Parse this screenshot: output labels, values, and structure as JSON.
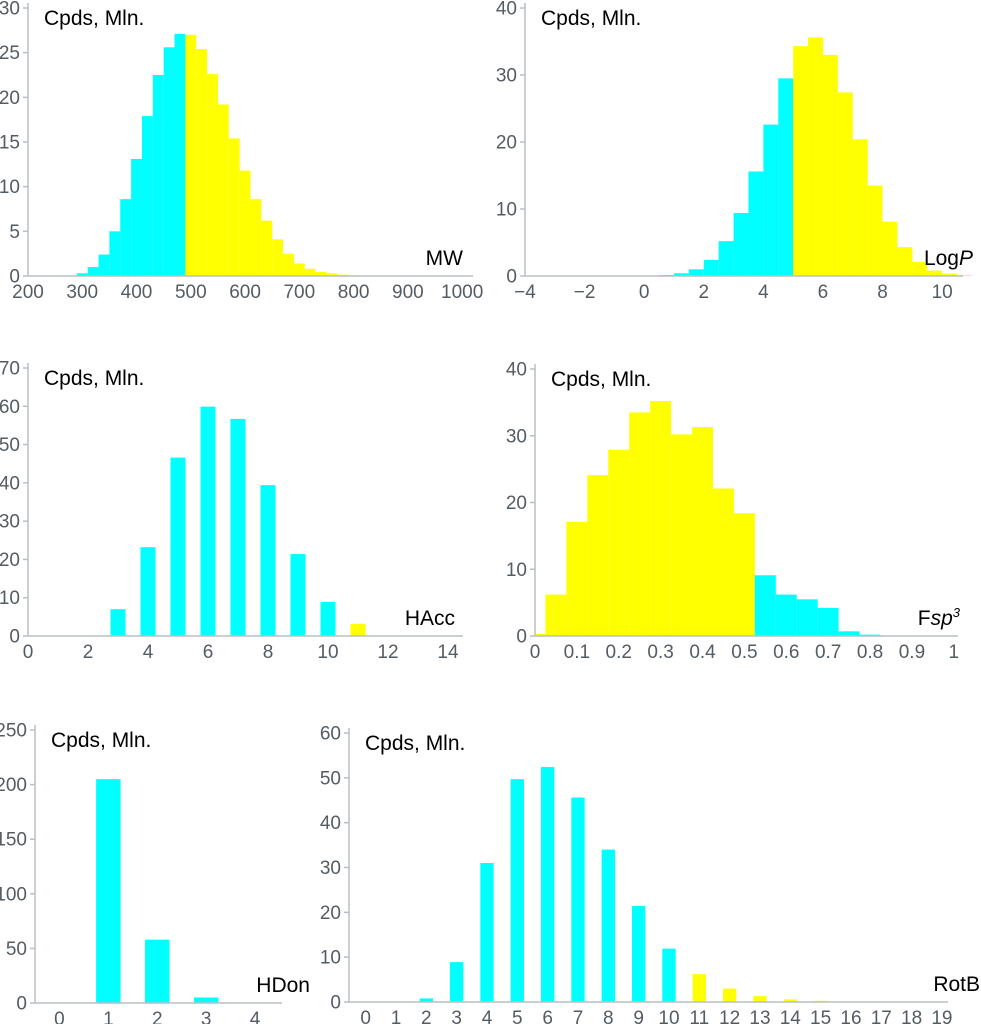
{
  "figure": {
    "background": "#ffffff",
    "colors": {
      "cyan": "#00ffff",
      "yellow": "#ffff00",
      "axis_line": "#b9c0c4",
      "tick_label": "#545c63",
      "text": "#000000"
    }
  },
  "chart_data": [
    {
      "type": "bar",
      "name": "MW",
      "ylabel": "Cpds, Mln.",
      "xlabel_parts": [
        {
          "t": "MW"
        }
      ],
      "x_range": [
        200,
        1020
      ],
      "y_range": [
        0,
        30
      ],
      "x_ticks": [
        [
          200,
          "200"
        ],
        [
          300,
          "300"
        ],
        [
          400,
          "400"
        ],
        [
          500,
          "500"
        ],
        [
          600,
          "600"
        ],
        [
          700,
          "700"
        ],
        [
          800,
          "800"
        ],
        [
          900,
          "900"
        ],
        [
          1000,
          "1000"
        ]
      ],
      "y_ticks": [
        [
          0,
          "0"
        ],
        [
          5,
          "5"
        ],
        [
          10,
          "10"
        ],
        [
          15,
          "15"
        ],
        [
          20,
          "20"
        ],
        [
          25,
          "25"
        ],
        [
          30,
          "30"
        ]
      ],
      "series": [
        {
          "name": "cyan",
          "color_key": "cyan",
          "bars": [
            [
              290,
              310,
              0.3
            ],
            [
              310,
              330,
              1.0
            ],
            [
              330,
              350,
              2.4
            ],
            [
              350,
              370,
              5.0
            ],
            [
              370,
              390,
              8.6
            ],
            [
              390,
              410,
              13.1
            ],
            [
              410,
              430,
              17.9
            ],
            [
              430,
              450,
              22.5
            ],
            [
              450,
              470,
              25.6
            ],
            [
              470,
              490,
              27.1
            ]
          ]
        },
        {
          "name": "yellow",
          "color_key": "yellow",
          "bars": [
            [
              490,
              510,
              27.0
            ],
            [
              510,
              530,
              25.4
            ],
            [
              530,
              550,
              22.6
            ],
            [
              550,
              570,
              19.2
            ],
            [
              570,
              590,
              15.4
            ],
            [
              590,
              610,
              11.8
            ],
            [
              610,
              630,
              8.6
            ],
            [
              630,
              650,
              6.2
            ],
            [
              650,
              670,
              4.1
            ],
            [
              670,
              690,
              2.5
            ],
            [
              690,
              710,
              1.4
            ],
            [
              710,
              730,
              0.8
            ],
            [
              730,
              750,
              0.45
            ],
            [
              750,
              770,
              0.3
            ],
            [
              770,
              790,
              0.15
            ],
            [
              790,
              810,
              0.08
            ]
          ]
        }
      ]
    },
    {
      "type": "bar",
      "name": "LogP",
      "ylabel": "Cpds, Mln.",
      "xlabel_parts": [
        {
          "t": "Log"
        },
        {
          "t": "P",
          "i": 1
        }
      ],
      "x_range": [
        -4,
        10.7
      ],
      "y_range": [
        0,
        40
      ],
      "x_ticks": [
        [
          -4,
          "−4"
        ],
        [
          -2,
          "−2"
        ],
        [
          0,
          "0"
        ],
        [
          2,
          "2"
        ],
        [
          4,
          "4"
        ],
        [
          6,
          "6"
        ],
        [
          8,
          "8"
        ],
        [
          10,
          "10"
        ]
      ],
      "y_ticks": [
        [
          0,
          "0"
        ],
        [
          10,
          "10"
        ],
        [
          20,
          "20"
        ],
        [
          30,
          "30"
        ],
        [
          40,
          "40"
        ]
      ],
      "series": [
        {
          "name": "cyan",
          "color_key": "cyan",
          "bars": [
            [
              0.5,
              1.0,
              0.15
            ],
            [
              1.0,
              1.5,
              0.4
            ],
            [
              1.5,
              2.0,
              1.0
            ],
            [
              2.0,
              2.5,
              2.4
            ],
            [
              2.5,
              3.0,
              5.2
            ],
            [
              3.0,
              3.5,
              9.4
            ],
            [
              3.5,
              4.0,
              15.6
            ],
            [
              4.0,
              4.5,
              22.6
            ],
            [
              4.5,
              5.0,
              29.5
            ]
          ]
        },
        {
          "name": "yellow",
          "color_key": "yellow",
          "bars": [
            [
              5.0,
              5.5,
              34.3
            ],
            [
              5.5,
              6.0,
              35.6
            ],
            [
              6.0,
              6.5,
              33.0
            ],
            [
              6.5,
              7.0,
              27.4
            ],
            [
              7.0,
              7.5,
              20.4
            ],
            [
              7.5,
              8.0,
              13.5
            ],
            [
              8.0,
              8.5,
              8.1
            ],
            [
              8.5,
              9.0,
              4.3
            ],
            [
              9.0,
              9.5,
              2.1
            ],
            [
              9.5,
              10.0,
              0.8
            ],
            [
              10.0,
              10.5,
              0.35
            ],
            [
              10.5,
              11.0,
              0.12
            ]
          ]
        }
      ]
    },
    {
      "type": "bar",
      "name": "HAcc",
      "ylabel": "Cpds, Mln.",
      "xlabel_parts": [
        {
          "t": "HAcc"
        }
      ],
      "x_range": [
        0,
        14.5
      ],
      "y_range": [
        0,
        70
      ],
      "x_ticks": [
        [
          0,
          "0"
        ],
        [
          2,
          "2"
        ],
        [
          4,
          "4"
        ],
        [
          6,
          "6"
        ],
        [
          8,
          "8"
        ],
        [
          10,
          "10"
        ],
        [
          12,
          "12"
        ],
        [
          14,
          "14"
        ]
      ],
      "y_ticks": [
        [
          0,
          "0"
        ],
        [
          10,
          "10"
        ],
        [
          20,
          "20"
        ],
        [
          30,
          "30"
        ],
        [
          40,
          "40"
        ],
        [
          50,
          "50"
        ],
        [
          60,
          "60"
        ],
        [
          70,
          "70"
        ]
      ],
      "series": [
        {
          "name": "cyan",
          "color_key": "cyan",
          "bars": [
            [
              2.75,
              3.25,
              7.0
            ],
            [
              3.75,
              4.25,
              23.2
            ],
            [
              4.75,
              5.25,
              46.6
            ],
            [
              5.75,
              6.25,
              59.9
            ],
            [
              6.75,
              7.25,
              56.7
            ],
            [
              7.75,
              8.25,
              39.4
            ],
            [
              8.75,
              9.25,
              21.4
            ],
            [
              9.75,
              10.25,
              8.9
            ]
          ]
        },
        {
          "name": "yellow",
          "color_key": "yellow",
          "bars": [
            [
              10.75,
              11.25,
              3.2
            ]
          ]
        }
      ]
    },
    {
      "type": "bar",
      "name": "Fsp3",
      "ylabel": "Cpds, Mln.",
      "xlabel_parts": [
        {
          "t": "F"
        },
        {
          "t": "sp",
          "i": 1
        },
        {
          "t": "3",
          "i": 1,
          "sup": 1
        }
      ],
      "x_range": [
        0,
        1.01
      ],
      "y_range": [
        0,
        40
      ],
      "x_ticks": [
        [
          0,
          "0"
        ],
        [
          0.1,
          "0.1"
        ],
        [
          0.2,
          "0.2"
        ],
        [
          0.3,
          "0.3"
        ],
        [
          0.4,
          "0.4"
        ],
        [
          0.5,
          "0.5"
        ],
        [
          0.6,
          "0.6"
        ],
        [
          0.7,
          "0.7"
        ],
        [
          0.8,
          "0.8"
        ],
        [
          0.9,
          "0.9"
        ],
        [
          1,
          "1"
        ]
      ],
      "y_ticks": [
        [
          0,
          "0"
        ],
        [
          10,
          "10"
        ],
        [
          20,
          "20"
        ],
        [
          30,
          "30"
        ],
        [
          40,
          "40"
        ]
      ],
      "series": [
        {
          "name": "yellow",
          "color_key": "yellow",
          "bars": [
            [
              0.0,
              0.025,
              0.3
            ],
            [
              0.025,
              0.075,
              6.2
            ],
            [
              0.075,
              0.125,
              17.1
            ],
            [
              0.125,
              0.175,
              24.1
            ],
            [
              0.175,
              0.225,
              27.9
            ],
            [
              0.225,
              0.275,
              33.5
            ],
            [
              0.275,
              0.325,
              35.2
            ],
            [
              0.325,
              0.375,
              30.2
            ],
            [
              0.375,
              0.425,
              31.3
            ],
            [
              0.425,
              0.475,
              22.1
            ],
            [
              0.475,
              0.525,
              18.4
            ]
          ]
        },
        {
          "name": "cyan",
          "color_key": "cyan",
          "bars": [
            [
              0.525,
              0.575,
              9.1
            ],
            [
              0.575,
              0.625,
              6.2
            ],
            [
              0.625,
              0.675,
              5.5
            ],
            [
              0.675,
              0.725,
              4.2
            ],
            [
              0.725,
              0.775,
              0.7
            ],
            [
              0.775,
              0.825,
              0.2
            ]
          ]
        }
      ]
    },
    {
      "type": "bar",
      "name": "HDon",
      "ylabel": "Cpds, Mln.",
      "xlabel_parts": [
        {
          "t": "HDon"
        }
      ],
      "x_range": [
        -0.5,
        4.55
      ],
      "y_range": [
        0,
        250
      ],
      "x_ticks": [
        [
          0,
          "0"
        ],
        [
          1,
          "1"
        ],
        [
          2,
          "2"
        ],
        [
          3,
          "3"
        ],
        [
          4,
          "4"
        ]
      ],
      "y_ticks": [
        [
          0,
          "0"
        ],
        [
          50,
          "50"
        ],
        [
          100,
          "100"
        ],
        [
          150,
          "150"
        ],
        [
          200,
          "200"
        ],
        [
          250,
          "250"
        ]
      ],
      "series": [
        {
          "name": "cyan",
          "color_key": "cyan",
          "bars": [
            [
              0.75,
              1.25,
              205
            ],
            [
              1.75,
              2.25,
              58
            ],
            [
              2.75,
              3.25,
              5
            ]
          ]
        }
      ]
    },
    {
      "type": "bar",
      "name": "RotB",
      "ylabel": "Cpds, Mln.",
      "xlabel_parts": [
        {
          "t": "RotB"
        }
      ],
      "x_range": [
        -0.55,
        19.2
      ],
      "y_range": [
        0,
        60
      ],
      "x_ticks": [
        [
          0,
          "0"
        ],
        [
          1,
          "1"
        ],
        [
          2,
          "2"
        ],
        [
          3,
          "3"
        ],
        [
          4,
          "4"
        ],
        [
          5,
          "5"
        ],
        [
          6,
          "6"
        ],
        [
          7,
          "7"
        ],
        [
          8,
          "8"
        ],
        [
          9,
          "9"
        ],
        [
          10,
          "10"
        ],
        [
          11,
          "11"
        ],
        [
          12,
          "12"
        ],
        [
          13,
          "13"
        ],
        [
          14,
          "14"
        ],
        [
          15,
          "15"
        ],
        [
          16,
          "16"
        ],
        [
          17,
          "17"
        ],
        [
          18,
          "18"
        ],
        [
          19,
          "19"
        ]
      ],
      "y_ticks": [
        [
          0,
          "0"
        ],
        [
          10,
          "10"
        ],
        [
          20,
          "20"
        ],
        [
          30,
          "30"
        ],
        [
          40,
          "40"
        ],
        [
          50,
          "50"
        ],
        [
          60,
          "60"
        ]
      ],
      "series": [
        {
          "name": "cyan",
          "color_key": "cyan",
          "bars": [
            [
              1.78,
              2.22,
              0.8
            ],
            [
              2.78,
              3.22,
              8.9
            ],
            [
              3.78,
              4.22,
              31.0
            ],
            [
              4.78,
              5.22,
              49.7
            ],
            [
              5.78,
              6.22,
              52.4
            ],
            [
              6.78,
              7.22,
              45.6
            ],
            [
              7.78,
              8.22,
              34.0
            ],
            [
              8.78,
              9.22,
              21.4
            ],
            [
              9.78,
              10.22,
              11.9
            ]
          ]
        },
        {
          "name": "yellow",
          "color_key": "yellow",
          "bars": [
            [
              10.78,
              11.22,
              6.2
            ],
            [
              11.78,
              12.22,
              3.0
            ],
            [
              12.78,
              13.22,
              1.3
            ],
            [
              13.78,
              14.22,
              0.6
            ],
            [
              14.78,
              15.22,
              0.25
            ],
            [
              15.78,
              16.22,
              0.1
            ]
          ]
        }
      ]
    }
  ]
}
